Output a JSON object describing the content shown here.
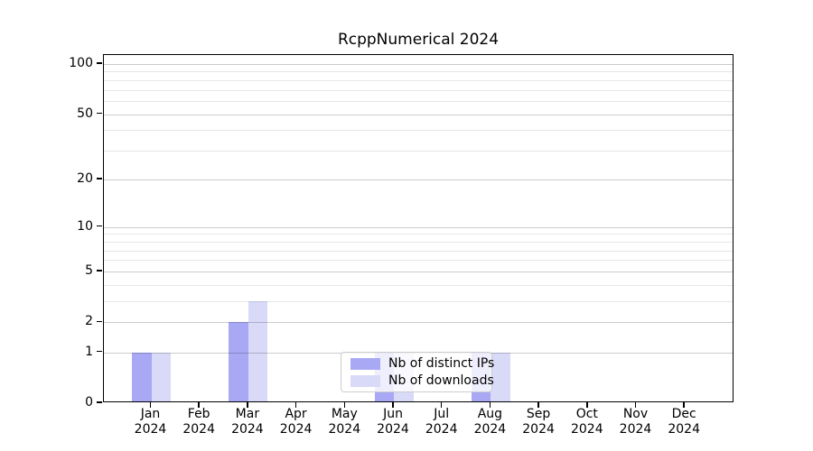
{
  "title": "RcppNumerical 2024",
  "chart_data": {
    "type": "bar",
    "title": "RcppNumerical 2024",
    "categories": [
      "Jan 2024",
      "Feb 2024",
      "Mar 2024",
      "Apr 2024",
      "May 2024",
      "Jun 2024",
      "Jul 2024",
      "Aug 2024",
      "Sep 2024",
      "Oct 2024",
      "Nov 2024",
      "Dec 2024"
    ],
    "x_months": [
      "Jan",
      "Feb",
      "Mar",
      "Apr",
      "May",
      "Jun",
      "Jul",
      "Aug",
      "Sep",
      "Oct",
      "Nov",
      "Dec"
    ],
    "x_year": "2024",
    "series": [
      {
        "name": "Nb of distinct IPs",
        "color": "#a8a8f4",
        "values": [
          1,
          0,
          2,
          0,
          0,
          1,
          0,
          1,
          0,
          0,
          0,
          0
        ]
      },
      {
        "name": "Nb of downloads",
        "color": "#d9d9f8",
        "values": [
          1,
          0,
          3,
          0,
          0,
          1,
          0,
          1,
          0,
          0,
          0,
          0
        ]
      }
    ],
    "xlabel": "",
    "ylabel": "",
    "y_scale": "log1p",
    "ylim": [
      0,
      113
    ],
    "y_ticks": [
      0,
      1,
      2,
      5,
      10,
      20,
      50,
      100
    ],
    "y_minor_gridlines": [
      3,
      4,
      6,
      7,
      8,
      9,
      30,
      40,
      60,
      70,
      80,
      90
    ],
    "grid": "horizontal, drawn over bars",
    "legend_position": "lower center"
  },
  "colors": {
    "background": "#ffffff",
    "spine": "#000000",
    "grid_major": "rgba(0,0,0,0.20)",
    "grid_minor": "rgba(0,0,0,0.10)",
    "legend_bg": "rgba(255,255,255,0.8)",
    "legend_border": "#cccccc",
    "text": "#000000"
  }
}
